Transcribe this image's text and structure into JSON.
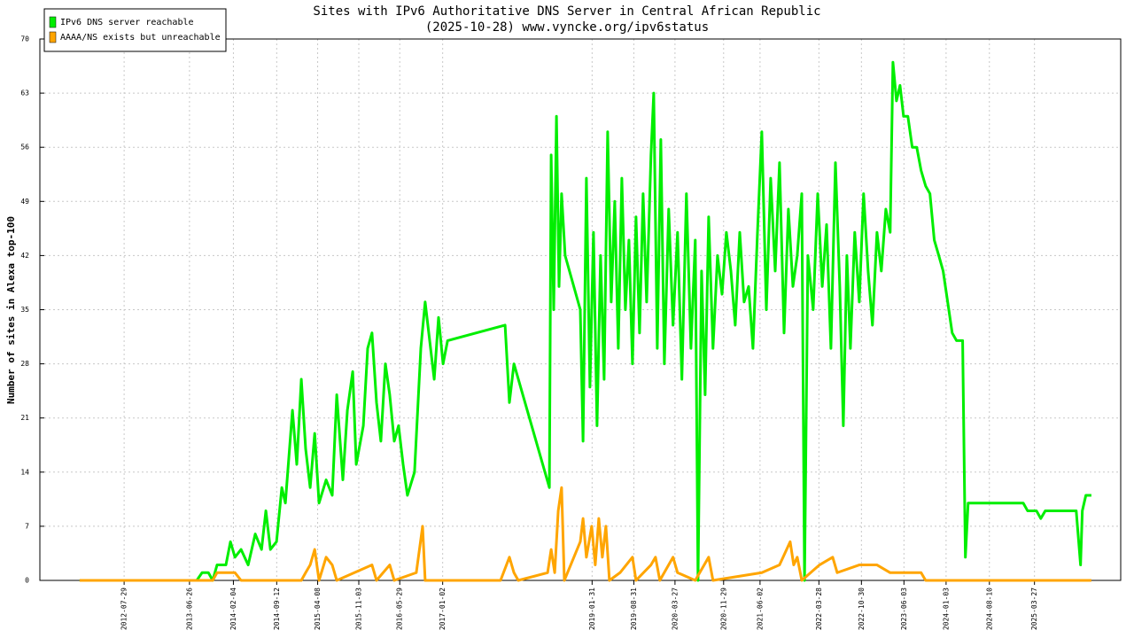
{
  "chart_data": {
    "type": "line",
    "title": "Sites with IPv6 Authoritative DNS Server in Central African Republic",
    "subtitle": "(2025-10-28) www.vyncke.org/ipv6status",
    "y_label": "Number of sites in Alexa top-100",
    "xlim": [
      "2011-05-28",
      "2026-06-08"
    ],
    "xticks": [
      "2012-07-29",
      "2013-06-26",
      "2014-02-04",
      "2014-09-12",
      "2015-04-08",
      "2015-11-03",
      "2016-05-29",
      "2017-01-02",
      "2019-01-31",
      "2019-08-31",
      "2020-03-27",
      "2020-11-29",
      "2021-06-02",
      "2022-03-28",
      "2022-10-30",
      "2023-06-03",
      "2024-01-03",
      "2024-08-10",
      "2025-03-27"
    ],
    "ylim": [
      0,
      70
    ],
    "yticks": [
      0,
      7,
      14,
      21,
      28,
      35,
      42,
      49,
      56,
      63,
      70
    ],
    "grid": true,
    "legend": "upper-left",
    "series": [
      {
        "name": "IPv6 DNS server reachable",
        "color": "#00ee00",
        "x": [
          "2011-12-16",
          "2013-08-02",
          "2013-08-29",
          "2013-09-30",
          "2013-10-22",
          "2013-11-13",
          "2013-12-28",
          "2014-01-20",
          "2014-02-12",
          "2014-03-15",
          "2014-04-20",
          "2014-05-26",
          "2014-06-27",
          "2014-07-19",
          "2014-08-11",
          "2014-09-11",
          "2014-10-08",
          "2014-10-26",
          "2014-12-01",
          "2014-12-23",
          "2015-01-15",
          "2015-02-06",
          "2015-03-01",
          "2015-03-24",
          "2015-04-15",
          "2015-05-21",
          "2015-06-21",
          "2015-07-14",
          "2015-08-14",
          "2015-09-06",
          "2015-10-03",
          "2015-10-21",
          "2015-11-26",
          "2015-12-18",
          "2016-01-09",
          "2016-02-01",
          "2016-02-23",
          "2016-03-17",
          "2016-04-08",
          "2016-05-01",
          "2016-05-23",
          "2016-06-15",
          "2016-07-07",
          "2016-08-12",
          "2016-09-13",
          "2016-10-05",
          "2016-10-28",
          "2016-11-20",
          "2016-12-12",
          "2017-01-04",
          "2017-01-27",
          "2017-11-15",
          "2017-12-07",
          "2017-12-30",
          "2018-06-28",
          "2018-07-07",
          "2018-07-20",
          "2018-08-03",
          "2018-08-16",
          "2018-08-29",
          "2018-09-16",
          "2018-12-02",
          "2018-12-16",
          "2019-01-02",
          "2019-01-20",
          "2019-02-07",
          "2019-02-25",
          "2019-03-15",
          "2019-04-02",
          "2019-04-20",
          "2019-05-08",
          "2019-05-26",
          "2019-06-13",
          "2019-07-01",
          "2019-07-19",
          "2019-08-06",
          "2019-08-24",
          "2019-09-11",
          "2019-09-29",
          "2019-10-17",
          "2019-11-04",
          "2019-11-26",
          "2019-12-10",
          "2019-12-28",
          "2020-01-15",
          "2020-02-02",
          "2020-02-24",
          "2020-03-17",
          "2020-04-09",
          "2020-05-01",
          "2020-05-24",
          "2020-06-16",
          "2020-07-08",
          "2020-07-22",
          "2020-08-09",
          "2020-08-27",
          "2020-09-14",
          "2020-10-06",
          "2020-10-29",
          "2020-11-21",
          "2020-12-13",
          "2021-01-05",
          "2021-01-27",
          "2021-02-19",
          "2021-03-13",
          "2021-04-05",
          "2021-04-27",
          "2021-05-20",
          "2021-06-11",
          "2021-07-04",
          "2021-07-26",
          "2021-08-18",
          "2021-09-09",
          "2021-10-02",
          "2021-10-24",
          "2021-11-16",
          "2021-12-08",
          "2021-12-31",
          "2022-01-14",
          "2022-01-31",
          "2022-02-27",
          "2022-03-22",
          "2022-04-14",
          "2022-05-06",
          "2022-05-28",
          "2022-06-20",
          "2022-07-12",
          "2022-07-30",
          "2022-08-17",
          "2022-09-04",
          "2022-09-26",
          "2022-10-19",
          "2022-11-10",
          "2022-12-03",
          "2022-12-25",
          "2023-01-17",
          "2023-02-08",
          "2023-03-03",
          "2023-03-25",
          "2023-04-08",
          "2023-04-26",
          "2023-05-14",
          "2023-06-01",
          "2023-06-23",
          "2023-07-15",
          "2023-08-07",
          "2023-08-29",
          "2023-09-21",
          "2023-10-13",
          "2023-11-04",
          "2023-11-27",
          "2023-12-19",
          "2024-01-11",
          "2024-02-03",
          "2024-02-25",
          "2024-03-27",
          "2024-04-10",
          "2024-04-24",
          "2024-11-08",
          "2025-01-29",
          "2025-02-20",
          "2025-04-06",
          "2025-04-28",
          "2025-05-21",
          "2025-10-25",
          "2025-11-16",
          "2025-11-25",
          "2025-12-13",
          "2026-01-10"
        ],
        "values": [
          0,
          0,
          1,
          1,
          0,
          2,
          2,
          5,
          3,
          4,
          2,
          6,
          4,
          9,
          4,
          5,
          12,
          10,
          22,
          15,
          26,
          17,
          12,
          19,
          10,
          13,
          11,
          24,
          13,
          22,
          27,
          15,
          20,
          30,
          32,
          23,
          18,
          28,
          24,
          18,
          20,
          15,
          11,
          14,
          30,
          36,
          31,
          26,
          34,
          28,
          31,
          33,
          23,
          28,
          12,
          55,
          35,
          60,
          38,
          50,
          42,
          35,
          18,
          52,
          25,
          45,
          20,
          42,
          26,
          58,
          36,
          49,
          30,
          52,
          35,
          44,
          28,
          47,
          32,
          50,
          36,
          55,
          63,
          30,
          57,
          28,
          48,
          33,
          45,
          26,
          50,
          30,
          44,
          0,
          40,
          24,
          47,
          30,
          42,
          37,
          45,
          40,
          33,
          45,
          36,
          38,
          30,
          45,
          58,
          35,
          52,
          40,
          54,
          32,
          48,
          38,
          42,
          50,
          0,
          42,
          35,
          50,
          38,
          46,
          30,
          54,
          38,
          20,
          42,
          30,
          45,
          36,
          50,
          40,
          33,
          45,
          40,
          48,
          45,
          67,
          62,
          64,
          60,
          60,
          56,
          56,
          53,
          51,
          50,
          44,
          42,
          40,
          36,
          32,
          31,
          31,
          3,
          10,
          10,
          10,
          9,
          9,
          8,
          9,
          9,
          2,
          9,
          11,
          11
        ]
      },
      {
        "name": "AAAA/NS exists but unreachable",
        "color": "#ffa500",
        "x": [
          "2011-12-16",
          "2013-10-22",
          "2013-11-13",
          "2014-02-12",
          "2014-03-15",
          "2015-01-15",
          "2015-02-06",
          "2015-03-01",
          "2015-03-24",
          "2015-04-15",
          "2015-05-21",
          "2015-06-21",
          "2015-07-14",
          "2016-01-09",
          "2016-02-01",
          "2016-04-08",
          "2016-05-01",
          "2016-08-21",
          "2016-09-22",
          "2016-10-05",
          "2017-10-23",
          "2017-12-07",
          "2017-12-30",
          "2018-01-21",
          "2018-06-19",
          "2018-07-07",
          "2018-07-25",
          "2018-08-12",
          "2018-08-29",
          "2018-09-12",
          "2018-12-02",
          "2018-12-16",
          "2019-01-02",
          "2019-01-29",
          "2019-02-16",
          "2019-03-06",
          "2019-03-24",
          "2019-04-11",
          "2019-04-29",
          "2019-06-22",
          "2019-08-24",
          "2019-09-11",
          "2019-11-26",
          "2019-12-19",
          "2020-01-10",
          "2020-03-17",
          "2020-04-09",
          "2020-07-08",
          "2020-09-14",
          "2020-10-06",
          "2021-06-11",
          "2021-09-09",
          "2021-10-15",
          "2021-11-02",
          "2021-11-20",
          "2021-12-08",
          "2021-12-31",
          "2022-03-31",
          "2022-06-06",
          "2022-06-29",
          "2022-10-19",
          "2023-01-17",
          "2023-03-25",
          "2023-08-29",
          "2023-09-21",
          "2026-01-10"
        ],
        "values": [
          0,
          0,
          1,
          1,
          0,
          0,
          1,
          2,
          4,
          0,
          3,
          2,
          0,
          2,
          0,
          2,
          0,
          1,
          7,
          0,
          0,
          3,
          1,
          0,
          1,
          4,
          1,
          9,
          12,
          0,
          5,
          8,
          3,
          7,
          2,
          8,
          3,
          7,
          0,
          1,
          3,
          0,
          2,
          3,
          0,
          3,
          1,
          0,
          3,
          0,
          1,
          2,
          4,
          5,
          2,
          3,
          0,
          2,
          3,
          1,
          2,
          2,
          1,
          1,
          0,
          0
        ]
      }
    ]
  }
}
